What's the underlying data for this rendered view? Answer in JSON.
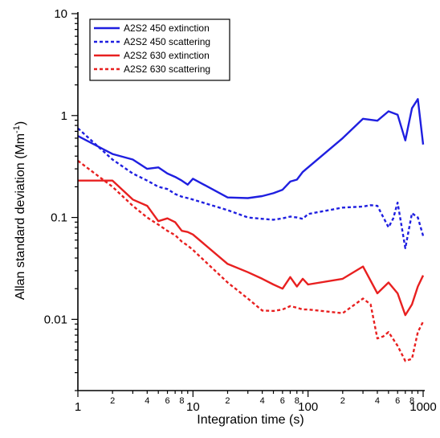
{
  "chart_data": {
    "type": "line",
    "title": "",
    "xlabel": "Integration time (s)",
    "ylabel_main": "Allan standard deviation (Mm",
    "ylabel_sup": "-1",
    "ylabel_close": ")",
    "x_scale": "log",
    "y_scale": "log",
    "xlim": [
      1,
      1000
    ],
    "ylim": [
      0.002,
      10
    ],
    "grid": false,
    "legend_position": "top-left",
    "x_major_ticks": [
      {
        "v": 1,
        "label": "1"
      },
      {
        "v": 10,
        "label": "10"
      },
      {
        "v": 100,
        "label": "100"
      },
      {
        "v": 1000,
        "label": "1000"
      }
    ],
    "x_minor_ticks": [
      {
        "v": 2,
        "label": "2"
      },
      {
        "v": 4,
        "label": "4"
      },
      {
        "v": 6,
        "label": "6"
      },
      {
        "v": 8,
        "label": "8"
      },
      {
        "v": 20,
        "label": "2"
      },
      {
        "v": 40,
        "label": "4"
      },
      {
        "v": 60,
        "label": "6"
      },
      {
        "v": 80,
        "label": "8"
      },
      {
        "v": 200,
        "label": "2"
      },
      {
        "v": 400,
        "label": "4"
      },
      {
        "v": 600,
        "label": "6"
      },
      {
        "v": 800,
        "label": "8"
      },
      {
        "v": 3,
        "label": ""
      },
      {
        "v": 5,
        "label": ""
      },
      {
        "v": 7,
        "label": ""
      },
      {
        "v": 9,
        "label": ""
      },
      {
        "v": 30,
        "label": ""
      },
      {
        "v": 50,
        "label": ""
      },
      {
        "v": 70,
        "label": ""
      },
      {
        "v": 90,
        "label": ""
      },
      {
        "v": 300,
        "label": ""
      },
      {
        "v": 500,
        "label": ""
      },
      {
        "v": 700,
        "label": ""
      },
      {
        "v": 900,
        "label": ""
      }
    ],
    "y_major_ticks": [
      {
        "v": 10,
        "label": "10"
      },
      {
        "v": 1,
        "label": "1"
      },
      {
        "v": 0.1,
        "label": "0.1"
      },
      {
        "v": 0.01,
        "label": "0.01"
      }
    ],
    "series": [
      {
        "name": "A2S2 450 extinction",
        "color": "#1f1fe0",
        "dash": "solid",
        "x": [
          1,
          2,
          3,
          4,
          5,
          6,
          7,
          8,
          9,
          10,
          20,
          30,
          40,
          50,
          60,
          70,
          80,
          90,
          100,
          200,
          300,
          400,
          500,
          600,
          700,
          800,
          900,
          1000
        ],
        "y": [
          0.63,
          0.42,
          0.37,
          0.3,
          0.31,
          0.27,
          0.25,
          0.23,
          0.21,
          0.24,
          0.157,
          0.155,
          0.162,
          0.173,
          0.187,
          0.225,
          0.235,
          0.28,
          0.31,
          0.6,
          0.93,
          0.89,
          1.1,
          1.02,
          0.57,
          1.18,
          1.45,
          0.52
        ]
      },
      {
        "name": "A2S2 450 scattering",
        "color": "#1f1fe0",
        "dash": "dotted",
        "x": [
          1,
          2,
          3,
          4,
          5,
          6,
          7,
          8,
          9,
          10,
          20,
          30,
          40,
          50,
          60,
          70,
          80,
          90,
          100,
          200,
          300,
          350,
          400,
          500,
          550,
          600,
          700,
          800,
          900,
          1000
        ],
        "y": [
          0.75,
          0.37,
          0.27,
          0.23,
          0.2,
          0.19,
          0.17,
          0.16,
          0.155,
          0.15,
          0.118,
          0.1,
          0.097,
          0.095,
          0.098,
          0.102,
          0.1,
          0.097,
          0.108,
          0.125,
          0.128,
          0.132,
          0.13,
          0.08,
          0.098,
          0.14,
          0.05,
          0.11,
          0.1,
          0.066
        ]
      },
      {
        "name": "A2S2 630 extinction",
        "color": "#e82020",
        "dash": "solid",
        "x": [
          1,
          2,
          3,
          4,
          5,
          6,
          7,
          8,
          9,
          10,
          20,
          30,
          40,
          50,
          60,
          70,
          80,
          90,
          100,
          200,
          300,
          400,
          500,
          600,
          700,
          800,
          900,
          1000
        ],
        "y": [
          0.23,
          0.23,
          0.15,
          0.13,
          0.092,
          0.098,
          0.09,
          0.074,
          0.072,
          0.068,
          0.035,
          0.029,
          0.025,
          0.022,
          0.02,
          0.026,
          0.021,
          0.025,
          0.022,
          0.025,
          0.033,
          0.018,
          0.023,
          0.018,
          0.011,
          0.014,
          0.021,
          0.027
        ]
      },
      {
        "name": "A2S2 630 scattering",
        "color": "#e82020",
        "dash": "dotted",
        "x": [
          1,
          2,
          3,
          4,
          5,
          6,
          7,
          8,
          9,
          10,
          20,
          30,
          40,
          50,
          60,
          70,
          80,
          90,
          100,
          200,
          300,
          350,
          400,
          450,
          500,
          600,
          700,
          800,
          900,
          1000
        ],
        "y": [
          0.36,
          0.2,
          0.13,
          0.1,
          0.085,
          0.074,
          0.067,
          0.058,
          0.053,
          0.048,
          0.023,
          0.016,
          0.0122,
          0.0121,
          0.0125,
          0.0135,
          0.013,
          0.0125,
          0.0125,
          0.0115,
          0.016,
          0.014,
          0.0065,
          0.0068,
          0.0075,
          0.0055,
          0.0039,
          0.0041,
          0.0075,
          0.0095
        ]
      }
    ]
  }
}
